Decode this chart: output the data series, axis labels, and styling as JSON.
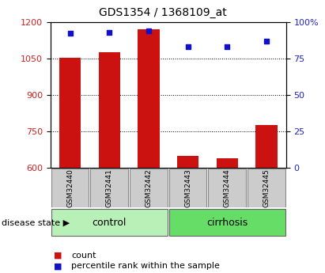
{
  "title": "GDS1354 / 1368109_at",
  "samples": [
    "GSM32440",
    "GSM32441",
    "GSM32442",
    "GSM32443",
    "GSM32444",
    "GSM32445"
  ],
  "counts": [
    1053,
    1075,
    1168,
    648,
    638,
    775
  ],
  "percentile_ranks": [
    92,
    93,
    94,
    83,
    83,
    87
  ],
  "groups": [
    {
      "label": "control",
      "color": "#90ee90"
    },
    {
      "label": "cirrhosis",
      "color": "#4cbb4c"
    }
  ],
  "ylim_left": [
    600,
    1200
  ],
  "ylim_right": [
    0,
    100
  ],
  "yticks_left": [
    600,
    750,
    900,
    1050,
    1200
  ],
  "yticks_right": [
    0,
    25,
    50,
    75,
    100
  ],
  "ytick_labels_right": [
    "0",
    "25",
    "50",
    "75",
    "100%"
  ],
  "bar_color": "#cc1111",
  "dot_color": "#1111cc",
  "bar_bottom": 600,
  "bar_width": 0.55,
  "group_label_prefix": "disease state",
  "legend_count_label": "count",
  "legend_pct_label": "percentile rank within the sample",
  "bg_color": "#ffffff",
  "tick_label_color_left": "#cc2222",
  "tick_label_color_right": "#2222cc",
  "grid_color": "#000000",
  "sample_box_color": "#cccccc",
  "ctrl_color": "#b8f0b8",
  "cirrh_color": "#66dd66"
}
